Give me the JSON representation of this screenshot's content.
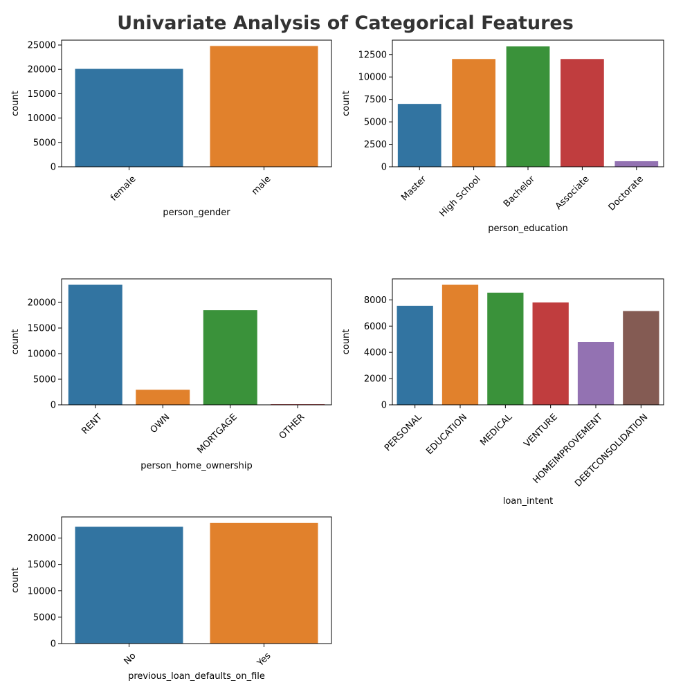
{
  "title": "Univariate Analysis of Categorical Features",
  "chart_data": [
    {
      "type": "bar",
      "xlabel": "person_gender",
      "ylabel": "count",
      "categories": [
        "female",
        "male"
      ],
      "values": [
        20100,
        24800
      ],
      "ylim": [
        0,
        26000
      ],
      "yticks": [
        0,
        5000,
        10000,
        15000,
        20000,
        25000
      ],
      "colors": [
        "#3274a1",
        "#e1812c"
      ],
      "grid": false
    },
    {
      "type": "bar",
      "xlabel": "person_education",
      "ylabel": "count",
      "categories": [
        "Master",
        "High School",
        "Bachelor",
        "Associate",
        "Doctorate"
      ],
      "values": [
        7000,
        12000,
        13400,
        12000,
        620
      ],
      "ylim": [
        0,
        14100
      ],
      "yticks": [
        0,
        2500,
        5000,
        7500,
        10000,
        12500
      ],
      "colors": [
        "#3274a1",
        "#e1812c",
        "#3a923a",
        "#c03d3e",
        "#9372b2"
      ],
      "grid": false
    },
    {
      "type": "bar",
      "xlabel": "person_home_ownership",
      "ylabel": "count",
      "categories": [
        "RENT",
        "OWN",
        "MORTGAGE",
        "OTHER"
      ],
      "values": [
        23450,
        2950,
        18500,
        120
      ],
      "ylim": [
        0,
        24600
      ],
      "yticks": [
        0,
        5000,
        10000,
        15000,
        20000
      ],
      "colors": [
        "#3274a1",
        "#e1812c",
        "#3a923a",
        "#c03d3e"
      ],
      "grid": false
    },
    {
      "type": "bar",
      "xlabel": "loan_intent",
      "ylabel": "count",
      "categories": [
        "PERSONAL",
        "EDUCATION",
        "MEDICAL",
        "VENTURE",
        "HOMEIMPROVEMENT",
        "DEBTCONSOLIDATION"
      ],
      "values": [
        7550,
        9150,
        8550,
        7800,
        4800,
        7150
      ],
      "ylim": [
        0,
        9600
      ],
      "yticks": [
        0,
        2000,
        4000,
        6000,
        8000
      ],
      "colors": [
        "#3274a1",
        "#e1812c",
        "#3a923a",
        "#c03d3e",
        "#9372b2",
        "#845b53"
      ],
      "grid": false
    },
    {
      "type": "bar",
      "xlabel": "previous_loan_defaults_on_file",
      "ylabel": "count",
      "categories": [
        "No",
        "Yes"
      ],
      "values": [
        22150,
        22850
      ],
      "ylim": [
        0,
        24000
      ],
      "yticks": [
        0,
        5000,
        10000,
        15000,
        20000
      ],
      "colors": [
        "#3274a1",
        "#e1812c"
      ],
      "grid": false
    }
  ]
}
